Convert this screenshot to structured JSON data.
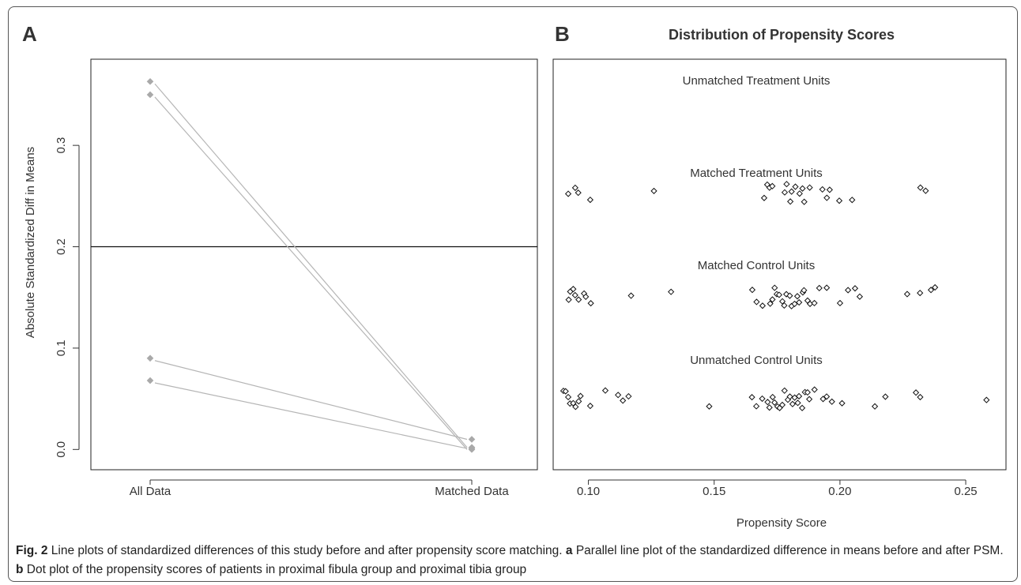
{
  "panel_a": {
    "letter": "A",
    "chart_data": {
      "type": "line",
      "title": "",
      "xlabel": "",
      "ylabel": "Absolute Standardized Diff in Means",
      "categories": [
        "All Data",
        "Matched Data"
      ],
      "ylim": [
        -0.02,
        0.385
      ],
      "yticks": [
        "0.0",
        "0.1",
        "0.2",
        "0.3"
      ],
      "yticks_values": [
        0.0,
        0.1,
        0.2,
        0.3
      ],
      "reference_line": 0.2,
      "series": [
        {
          "values": [
            0.363,
            0.002
          ]
        },
        {
          "values": [
            0.35,
            0.0
          ]
        },
        {
          "values": [
            0.09,
            0.01
          ]
        },
        {
          "values": [
            0.068,
            0.001
          ]
        }
      ],
      "colors": {
        "series": "#b5b5b5",
        "points": "#a9a9a9",
        "reference": "#111111"
      }
    }
  },
  "panel_b": {
    "letter": "B",
    "chart_data": {
      "type": "scatter",
      "title": "Distribution of Propensity Scores",
      "xlabel": "Propensity Score",
      "ylabel": "",
      "xlim": [
        0.086,
        0.266
      ],
      "xticks": [
        "0.10",
        "0.15",
        "0.20",
        "0.25"
      ],
      "xticks_values": [
        0.1,
        0.15,
        0.2,
        0.25
      ],
      "groups": [
        {
          "name": "Unmatched Treatment Units",
          "x": []
        },
        {
          "name": "Matched Treatment Units",
          "x": [
            0.092,
            0.095,
            0.096,
            0.101,
            0.126,
            0.17,
            0.171,
            0.172,
            0.173,
            0.178,
            0.179,
            0.18,
            0.181,
            0.182,
            0.184,
            0.185,
            0.186,
            0.188,
            0.193,
            0.195,
            0.196,
            0.2,
            0.205,
            0.232,
            0.234
          ]
        },
        {
          "name": "Matched Control Units",
          "x": [
            0.092,
            0.093,
            0.094,
            0.095,
            0.096,
            0.098,
            0.099,
            0.101,
            0.117,
            0.133,
            0.165,
            0.167,
            0.169,
            0.172,
            0.173,
            0.174,
            0.175,
            0.176,
            0.177,
            0.178,
            0.179,
            0.18,
            0.181,
            0.182,
            0.183,
            0.184,
            0.185,
            0.186,
            0.187,
            0.188,
            0.19,
            0.192,
            0.195,
            0.2,
            0.203,
            0.206,
            0.208,
            0.227,
            0.232,
            0.236,
            0.238
          ]
        },
        {
          "name": "Unmatched Control Units",
          "x": [
            0.09,
            0.091,
            0.092,
            0.093,
            0.094,
            0.095,
            0.096,
            0.097,
            0.101,
            0.107,
            0.112,
            0.114,
            0.116,
            0.148,
            0.165,
            0.167,
            0.169,
            0.171,
            0.172,
            0.173,
            0.174,
            0.175,
            0.176,
            0.177,
            0.178,
            0.179,
            0.18,
            0.181,
            0.182,
            0.183,
            0.184,
            0.185,
            0.186,
            0.187,
            0.188,
            0.19,
            0.193,
            0.195,
            0.197,
            0.201,
            0.214,
            0.218,
            0.23,
            0.232,
            0.258
          ]
        }
      ]
    }
  },
  "caption": {
    "fig_label": "Fig. 2",
    "intro": " Line plots of standardized differences of this study before and after propensity score matching. ",
    "a_label": "a",
    "a_text": " Parallel line plot of the standardized difference in means before and after PSM. ",
    "b_label": "b",
    "b_text": " Dot plot of the propensity scores of patients in proximal fibula group and proximal tibia group"
  }
}
